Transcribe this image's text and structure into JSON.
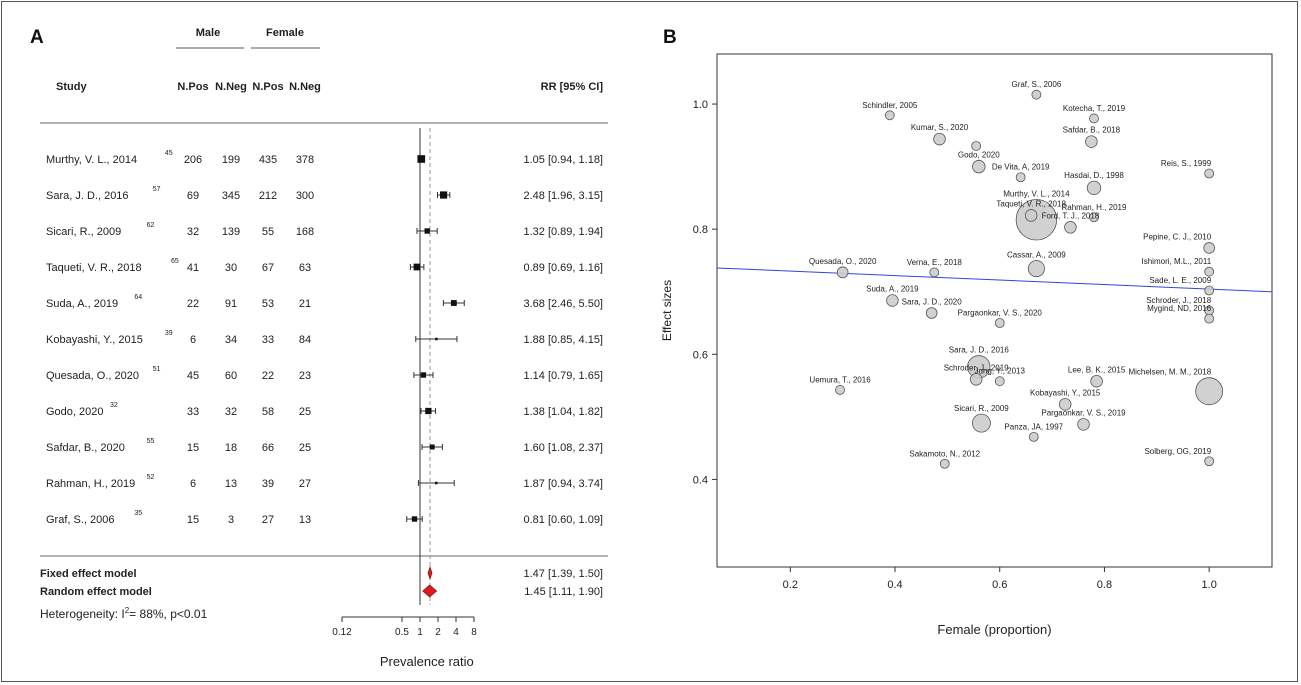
{
  "figure": {
    "panel_a_letter": "A",
    "panel_b_letter": "B"
  },
  "chart_data": [
    {
      "type": "forest",
      "group_headers": [
        "Male",
        "Female"
      ],
      "headers": {
        "study": "Study",
        "male_pos": "N.Pos",
        "male_neg": "N.Neg",
        "female_pos": "N.Pos",
        "female_neg": "N.Neg",
        "rr": "RR [95% CI]"
      },
      "studies": [
        {
          "label": "Murthy, V. L., 2014",
          "ref": "45",
          "male_pos": "206",
          "male_neg": "199",
          "female_pos": "435",
          "female_neg": "378",
          "rr": 1.05,
          "lo": 0.94,
          "hi": 1.18,
          "weight": 0.85,
          "rr_text": "1.05 [0.94, 1.18]"
        },
        {
          "label": "Sara, J. D., 2016",
          "ref": "57",
          "male_pos": "69",
          "male_neg": "345",
          "female_pos": "212",
          "female_neg": "300",
          "rr": 2.48,
          "lo": 1.96,
          "hi": 3.15,
          "weight": 0.8,
          "rr_text": "2.48 [1.96, 3.15]"
        },
        {
          "label": "Sicari, R., 2009",
          "ref": "62",
          "male_pos": "32",
          "male_neg": "139",
          "female_pos": "55",
          "female_neg": "168",
          "rr": 1.32,
          "lo": 0.89,
          "hi": 1.94,
          "weight": 0.6,
          "rr_text": "1.32 [0.89, 1.94]"
        },
        {
          "label": "Taqueti, V. R., 2018",
          "ref": "65",
          "male_pos": "41",
          "male_neg": "30",
          "female_pos": "67",
          "female_neg": "63",
          "rr": 0.89,
          "lo": 0.69,
          "hi": 1.16,
          "weight": 0.75,
          "rr_text": "0.89 [0.69, 1.16]"
        },
        {
          "label": "Suda, A., 2019",
          "ref": "64",
          "male_pos": "22",
          "male_neg": "91",
          "female_pos": "53",
          "female_neg": "21",
          "rr": 3.68,
          "lo": 2.46,
          "hi": 5.5,
          "weight": 0.65,
          "rr_text": "3.68 [2.46, 5.50]"
        },
        {
          "label": "Kobayashi, Y., 2015",
          "ref": "39",
          "male_pos": "6",
          "male_neg": "34",
          "female_pos": "33",
          "female_neg": "84",
          "rr": 1.88,
          "lo": 0.85,
          "hi": 4.15,
          "weight": 0.2,
          "rr_text": "1.88 [0.85, 4.15]"
        },
        {
          "label": "Quesada, O., 2020",
          "ref": "51",
          "male_pos": "45",
          "male_neg": "60",
          "female_pos": "22",
          "female_neg": "23",
          "rr": 1.14,
          "lo": 0.79,
          "hi": 1.65,
          "weight": 0.6,
          "rr_text": "1.14 [0.79, 1.65]"
        },
        {
          "label": "Godo, 2020",
          "ref": "32",
          "male_pos": "33",
          "male_neg": "32",
          "female_pos": "58",
          "female_neg": "25",
          "rr": 1.38,
          "lo": 1.04,
          "hi": 1.82,
          "weight": 0.7,
          "rr_text": "1.38 [1.04, 1.82]"
        },
        {
          "label": "Safdar, B., 2020",
          "ref": "55",
          "male_pos": "15",
          "male_neg": "18",
          "female_pos": "66",
          "female_neg": "25",
          "rr": 1.6,
          "lo": 1.08,
          "hi": 2.37,
          "weight": 0.55,
          "rr_text": "1.60 [1.08, 2.37]"
        },
        {
          "label": "Rahman, H., 2019",
          "ref": "52",
          "male_pos": "6",
          "male_neg": "13",
          "female_pos": "39",
          "female_neg": "27",
          "rr": 1.87,
          "lo": 0.94,
          "hi": 3.74,
          "weight": 0.25,
          "rr_text": "1.87 [0.94, 3.74]"
        },
        {
          "label": "Graf, S., 2006",
          "ref": "35",
          "male_pos": "15",
          "male_neg": "3",
          "female_pos": "27",
          "female_neg": "13",
          "rr": 0.81,
          "lo": 0.6,
          "hi": 1.09,
          "weight": 0.6,
          "rr_text": "0.81 [0.60, 1.09]"
        }
      ],
      "models": [
        {
          "label": "Fixed effect model",
          "rr": 1.47,
          "lo": 1.39,
          "hi": 1.5,
          "rr_text": "1.47 [1.39, 1.50]"
        },
        {
          "label": "Random effect model",
          "rr": 1.45,
          "lo": 1.11,
          "hi": 1.9,
          "rr_text": "1.45 [1.11, 1.90]"
        }
      ],
      "heterogeneity": {
        "prefix": "Heterogeneity: I",
        "sup": "2",
        "suffix": "= 88%, p<0.01"
      },
      "x_axis": {
        "scale": "log",
        "ticks": [
          0.12,
          0.5,
          1,
          2,
          4,
          8
        ],
        "tick_labels": [
          "0.12",
          "0.5",
          "1",
          "2",
          "4",
          "8"
        ],
        "label": "Prevalence ratio"
      },
      "reference_line": 1,
      "colors": {
        "square": "#111111",
        "diamond": "#d81e1e",
        "dashed_line": "#999999"
      }
    },
    {
      "type": "scatter",
      "xlabel": "Female (proportion)",
      "ylabel": "Effect sizes",
      "xlim": [
        0.06,
        1.12
      ],
      "ylim": [
        0.26,
        1.08
      ],
      "xticks": [
        0.2,
        0.4,
        0.6,
        0.8,
        1.0
      ],
      "xtick_labels": [
        "0.2",
        "0.4",
        "0.6",
        "0.8",
        "1.0"
      ],
      "yticks": [
        0.4,
        0.6,
        0.8,
        1.0
      ],
      "ytick_labels": [
        "0.4",
        "0.6",
        "0.8",
        "1.0"
      ],
      "regression": {
        "y_at_xmin": 0.738,
        "y_at_xmax": 0.7,
        "color": "#3344dd"
      },
      "point_color": {
        "fill": "#cccccc",
        "stroke": "#555555"
      },
      "points": [
        {
          "label": "Graf, S., 2006",
          "x": 0.67,
          "y": 1.015,
          "size": 1.0
        },
        {
          "label": "Schindler, 2005",
          "x": 0.39,
          "y": 0.982,
          "size": 1.0
        },
        {
          "label": "Kotecha, T., 2019",
          "x": 0.78,
          "y": 0.977,
          "size": 1.0
        },
        {
          "label": "Kumar, S., 2020",
          "x": 0.485,
          "y": 0.944,
          "size": 1.3
        },
        {
          "label": "Safdar, B., 2018",
          "x": 0.775,
          "y": 0.94,
          "size": 1.3
        },
        {
          "label": "",
          "x": 0.555,
          "y": 0.933,
          "size": 1.0
        },
        {
          "label": "Godo, 2020",
          "x": 0.56,
          "y": 0.9,
          "size": 1.4
        },
        {
          "label": "De Vita, A, 2019",
          "x": 0.64,
          "y": 0.883,
          "size": 1.0
        },
        {
          "label": "Hasdai, D., 1998",
          "x": 0.78,
          "y": 0.866,
          "size": 1.5
        },
        {
          "label": "Reis, S., 1999",
          "x": 1.0,
          "y": 0.889,
          "size": 1.0
        },
        {
          "label": "Taqueti, V. R., 2018",
          "x": 0.66,
          "y": 0.822,
          "size": 1.3
        },
        {
          "label": "Murthy, V. L., 2014",
          "x": 0.67,
          "y": 0.815,
          "size": 4.5
        },
        {
          "label": "Rahman, H., 2019",
          "x": 0.78,
          "y": 0.819,
          "size": 1.0
        },
        {
          "label": "Ford, T. J., 2018",
          "x": 0.735,
          "y": 0.803,
          "size": 1.3
        },
        {
          "label": "Pepine, C. J., 2010",
          "x": 1.0,
          "y": 0.77,
          "size": 1.2
        },
        {
          "label": "Quesada, O., 2020",
          "x": 0.3,
          "y": 0.731,
          "size": 1.2
        },
        {
          "label": "Verna, E., 2018",
          "x": 0.475,
          "y": 0.731,
          "size": 1.0
        },
        {
          "label": "Cassar, A., 2009",
          "x": 0.67,
          "y": 0.737,
          "size": 1.8
        },
        {
          "label": "Ishimori, M.L., 2011",
          "x": 1.0,
          "y": 0.732,
          "size": 1.0
        },
        {
          "label": "Sade, L. E., 2009",
          "x": 1.0,
          "y": 0.702,
          "size": 1.0
        },
        {
          "label": "Suda, A., 2019",
          "x": 0.395,
          "y": 0.686,
          "size": 1.3
        },
        {
          "label": "Sara, J. D., 2020",
          "x": 0.47,
          "y": 0.666,
          "size": 1.2
        },
        {
          "label": "Pargaonkar, V. S., 2020",
          "x": 0.6,
          "y": 0.65,
          "size": 1.0
        },
        {
          "label": "Schroder, J., 2018",
          "x": 1.0,
          "y": 0.67,
          "size": 1.0
        },
        {
          "label": "Mygind, ND, 2016",
          "x": 1.0,
          "y": 0.657,
          "size": 1.0
        },
        {
          "label": "Sara, J. D., 2016",
          "x": 0.56,
          "y": 0.58,
          "size": 2.5
        },
        {
          "label": "Schroder, J., 2019",
          "x": 0.555,
          "y": 0.56,
          "size": 1.3
        },
        {
          "label": "Jung, Y., 2013",
          "x": 0.6,
          "y": 0.557,
          "size": 1.0
        },
        {
          "label": "Lee, B. K., 2015",
          "x": 0.785,
          "y": 0.557,
          "size": 1.3
        },
        {
          "label": "Uemura, T., 2016",
          "x": 0.295,
          "y": 0.543,
          "size": 1.0
        },
        {
          "label": "Michelsen, M. M., 2018",
          "x": 1.0,
          "y": 0.541,
          "size": 3.0
        },
        {
          "label": "Kobayashi, Y., 2015",
          "x": 0.725,
          "y": 0.52,
          "size": 1.3
        },
        {
          "label": "Sicari, R., 2009",
          "x": 0.565,
          "y": 0.49,
          "size": 2.0
        },
        {
          "label": "Pargaonkar, V. S., 2019",
          "x": 0.76,
          "y": 0.488,
          "size": 1.3
        },
        {
          "label": "Panza, JA, 1997",
          "x": 0.665,
          "y": 0.468,
          "size": 1.0
        },
        {
          "label": "Sakamoto, N., 2012",
          "x": 0.495,
          "y": 0.425,
          "size": 1.0
        },
        {
          "label": "Solberg, OG, 2019",
          "x": 1.0,
          "y": 0.429,
          "size": 1.0
        }
      ]
    }
  ]
}
